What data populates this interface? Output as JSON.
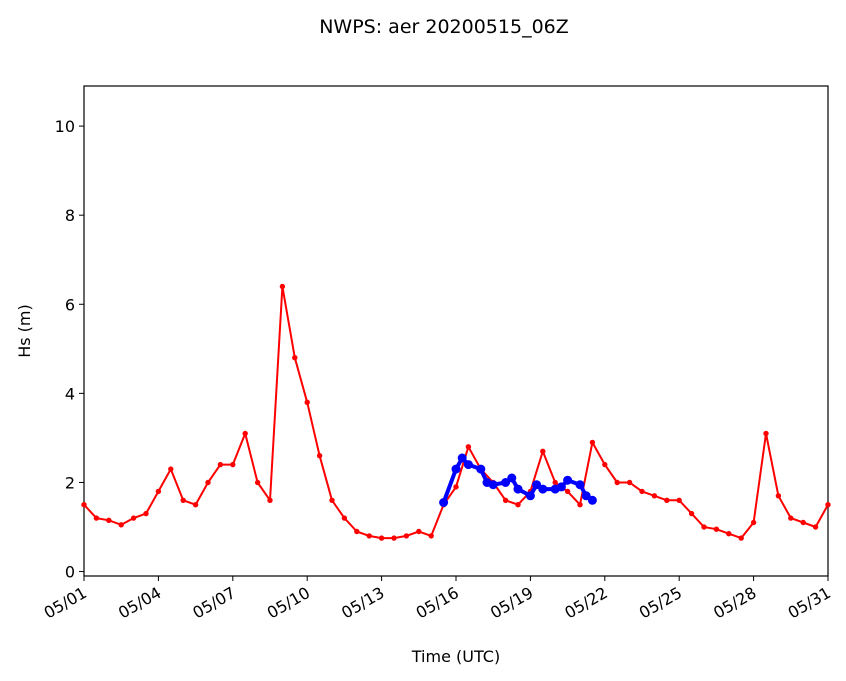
{
  "chart_data": {
    "type": "line",
    "title": "NWPS: aer 20200515_06Z",
    "xlabel": "Time (UTC)",
    "ylabel": "Hs (m)",
    "xlim": [
      "2020-05-01",
      "2020-05-31"
    ],
    "ylim": [
      -0.1,
      10.9
    ],
    "xticks": [
      "05/01",
      "05/04",
      "05/07",
      "05/10",
      "05/13",
      "05/16",
      "05/19",
      "05/22",
      "05/25",
      "05/28",
      "05/31"
    ],
    "yticks": [
      "0",
      "2",
      "4",
      "6",
      "8",
      "10"
    ],
    "grid": false,
    "series": [
      {
        "color": "#ff0000",
        "marker": "dot",
        "x": [
          "2020-05-01 00:00",
          "2020-05-01 12:00",
          "2020-05-02 00:00",
          "2020-05-02 12:00",
          "2020-05-03 00:00",
          "2020-05-03 12:00",
          "2020-05-04 00:00",
          "2020-05-04 12:00",
          "2020-05-05 00:00",
          "2020-05-05 12:00",
          "2020-05-06 00:00",
          "2020-05-06 12:00",
          "2020-05-07 00:00",
          "2020-05-07 12:00",
          "2020-05-08 00:00",
          "2020-05-08 12:00",
          "2020-05-09 00:00",
          "2020-05-09 12:00",
          "2020-05-10 00:00",
          "2020-05-10 12:00",
          "2020-05-11 00:00",
          "2020-05-11 12:00",
          "2020-05-12 00:00",
          "2020-05-12 12:00",
          "2020-05-13 00:00",
          "2020-05-13 12:00",
          "2020-05-14 00:00",
          "2020-05-14 12:00",
          "2020-05-15 00:00",
          "2020-05-15 12:00",
          "2020-05-16 00:00",
          "2020-05-16 12:00",
          "2020-05-17 00:00",
          "2020-05-17 12:00",
          "2020-05-18 00:00",
          "2020-05-18 12:00",
          "2020-05-19 00:00",
          "2020-05-19 12:00",
          "2020-05-20 00:00",
          "2020-05-20 12:00",
          "2020-05-21 00:00",
          "2020-05-21 12:00",
          "2020-05-22 00:00",
          "2020-05-22 12:00",
          "2020-05-23 00:00",
          "2020-05-23 12:00",
          "2020-05-24 00:00",
          "2020-05-24 12:00",
          "2020-05-25 00:00",
          "2020-05-25 12:00",
          "2020-05-26 00:00",
          "2020-05-26 12:00",
          "2020-05-27 00:00",
          "2020-05-27 12:00",
          "2020-05-28 00:00",
          "2020-05-28 12:00",
          "2020-05-29 00:00",
          "2020-05-29 12:00",
          "2020-05-30 00:00",
          "2020-05-30 12:00",
          "2020-05-31 00:00"
        ],
        "y": [
          1.5,
          1.2,
          1.15,
          1.05,
          1.2,
          1.3,
          1.8,
          2.3,
          1.6,
          1.5,
          2.0,
          2.4,
          2.4,
          3.1,
          2.0,
          1.6,
          6.4,
          4.8,
          3.8,
          2.6,
          1.6,
          1.2,
          0.9,
          0.8,
          0.75,
          0.75,
          0.8,
          0.9,
          0.8,
          1.5,
          1.9,
          2.8,
          2.3,
          2.0,
          1.6,
          1.5,
          1.8,
          2.7,
          2.0,
          1.8,
          1.5,
          2.9,
          2.4,
          2.0,
          2.0,
          1.8,
          1.7,
          1.6,
          1.6,
          1.3,
          1.0,
          0.95,
          0.85,
          0.75,
          1.1,
          3.1,
          1.7,
          1.2,
          1.1,
          1.0,
          1.5
        ]
      },
      {
        "color": "#0000ff",
        "marker": "circle",
        "x": [
          "2020-05-15 12:00",
          "2020-05-16 00:00",
          "2020-05-16 06:00",
          "2020-05-16 12:00",
          "2020-05-17 00:00",
          "2020-05-17 06:00",
          "2020-05-17 12:00",
          "2020-05-18 00:00",
          "2020-05-18 06:00",
          "2020-05-18 12:00",
          "2020-05-19 00:00",
          "2020-05-19 06:00",
          "2020-05-19 12:00",
          "2020-05-20 00:00",
          "2020-05-20 06:00",
          "2020-05-20 12:00",
          "2020-05-21 00:00",
          "2020-05-21 06:00",
          "2020-05-21 12:00"
        ],
        "y": [
          1.55,
          2.3,
          2.55,
          2.4,
          2.3,
          2.0,
          1.95,
          2.0,
          2.1,
          1.85,
          1.7,
          1.95,
          1.85,
          1.85,
          1.9,
          2.05,
          1.95,
          1.7,
          1.6
        ]
      }
    ]
  }
}
